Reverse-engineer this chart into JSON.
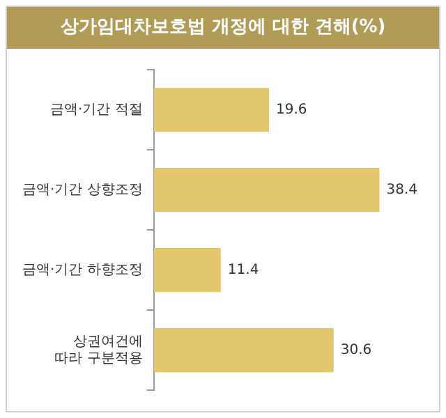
{
  "chart_data": {
    "type": "bar",
    "orientation": "horizontal",
    "title": "상가임대차보호법 개정에 대한 견해(%)",
    "categories": [
      "금액·기간 적절",
      "금액·기간 상향조정",
      "금액·기간 하향조정",
      "상권여건에\n따라 구분적용"
    ],
    "values": [
      19.6,
      38.4,
      11.4,
      30.6
    ],
    "colors": [
      "#e3c76c",
      "#e3c76c",
      "#e3c76c",
      "#e3c76c"
    ],
    "data_labels": true
  }
}
